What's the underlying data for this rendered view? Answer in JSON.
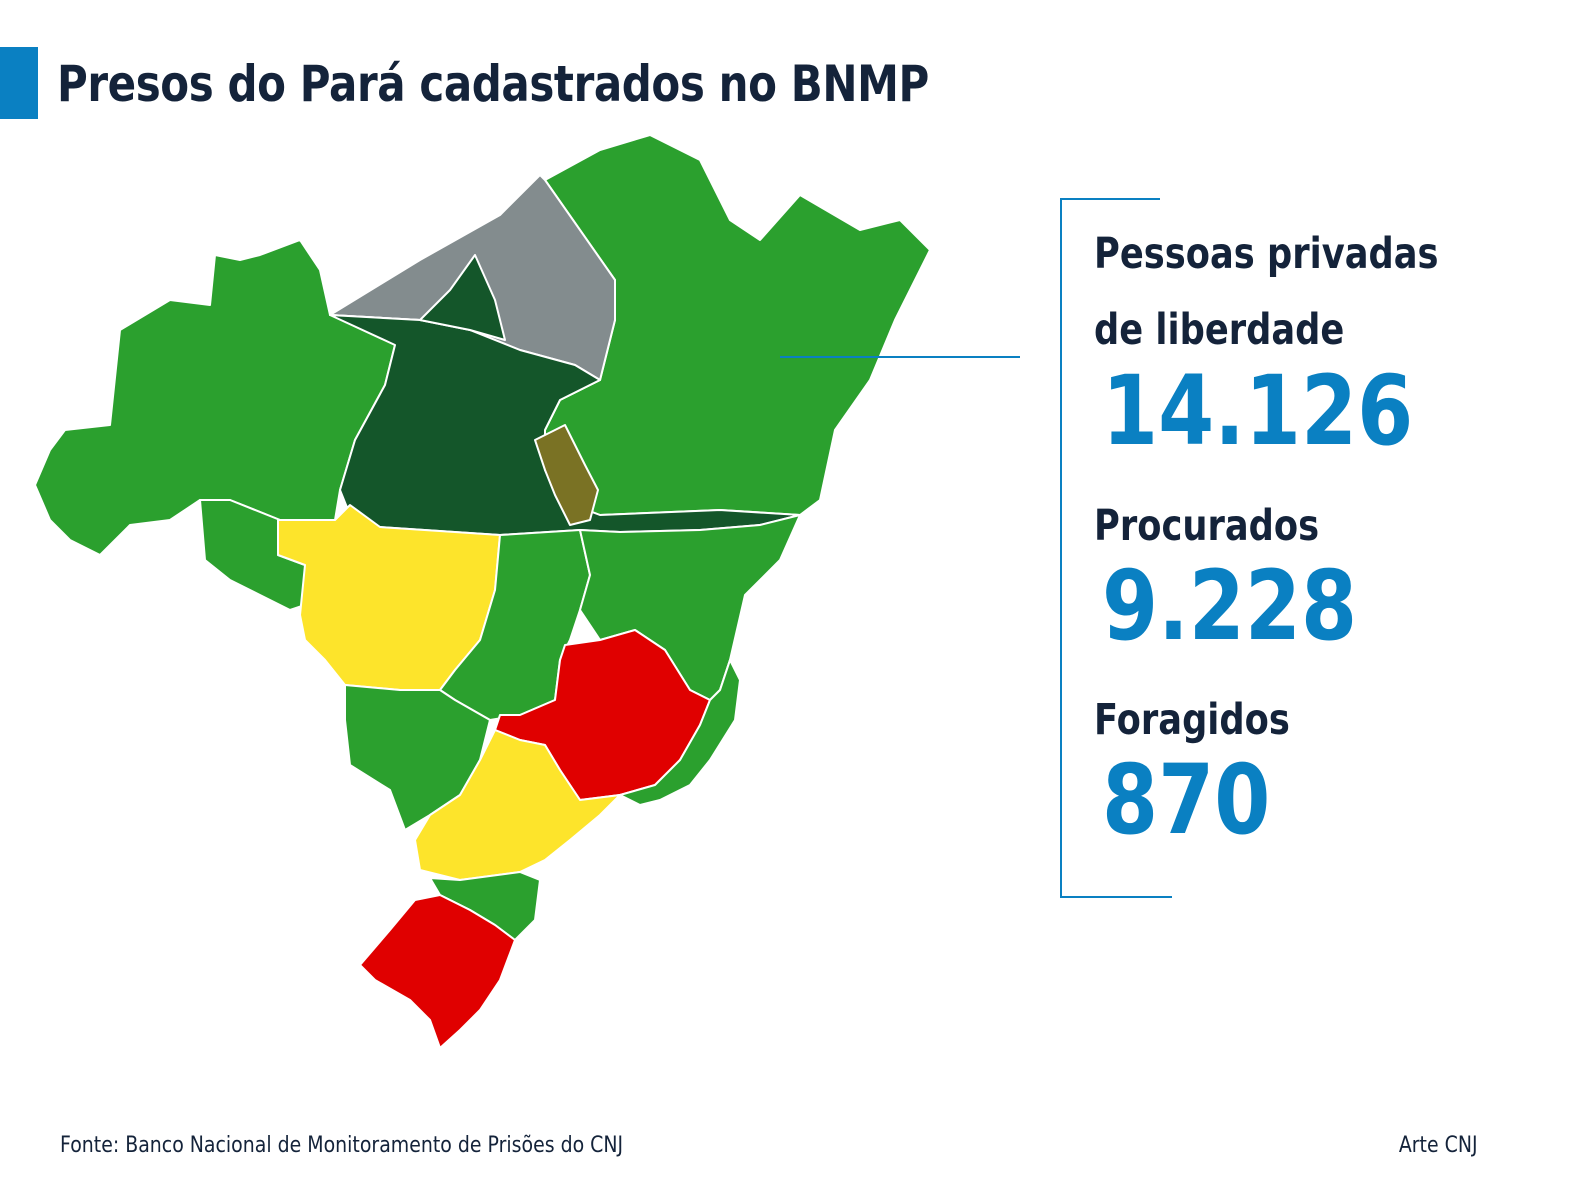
{
  "title": "Presos do Pará cadastrados no BNMP",
  "colors": {
    "title_text": "#14233a",
    "accent": "#0a80c2",
    "label_text": "#14233a",
    "value_text": "#0a80c2",
    "state_green": "#2ba02e",
    "state_dark_green": "#14562a",
    "state_gray": "#838c8e",
    "state_olive": "#7a7224",
    "state_yellow": "#fde42b",
    "state_red": "#e00000",
    "border": "#ffffff"
  },
  "stats": [
    {
      "label_line1": "Pessoas privadas",
      "label_line2": "de liberdade",
      "value": "14.126"
    },
    {
      "label_line1": "Procurados",
      "value": "9.228"
    },
    {
      "label_line1": "Foragidos",
      "value": "870"
    }
  ],
  "footer": {
    "source": "Fonte: Banco Nacional de Monitoramento de Prisões do CNJ",
    "credit": "Arte CNJ"
  }
}
